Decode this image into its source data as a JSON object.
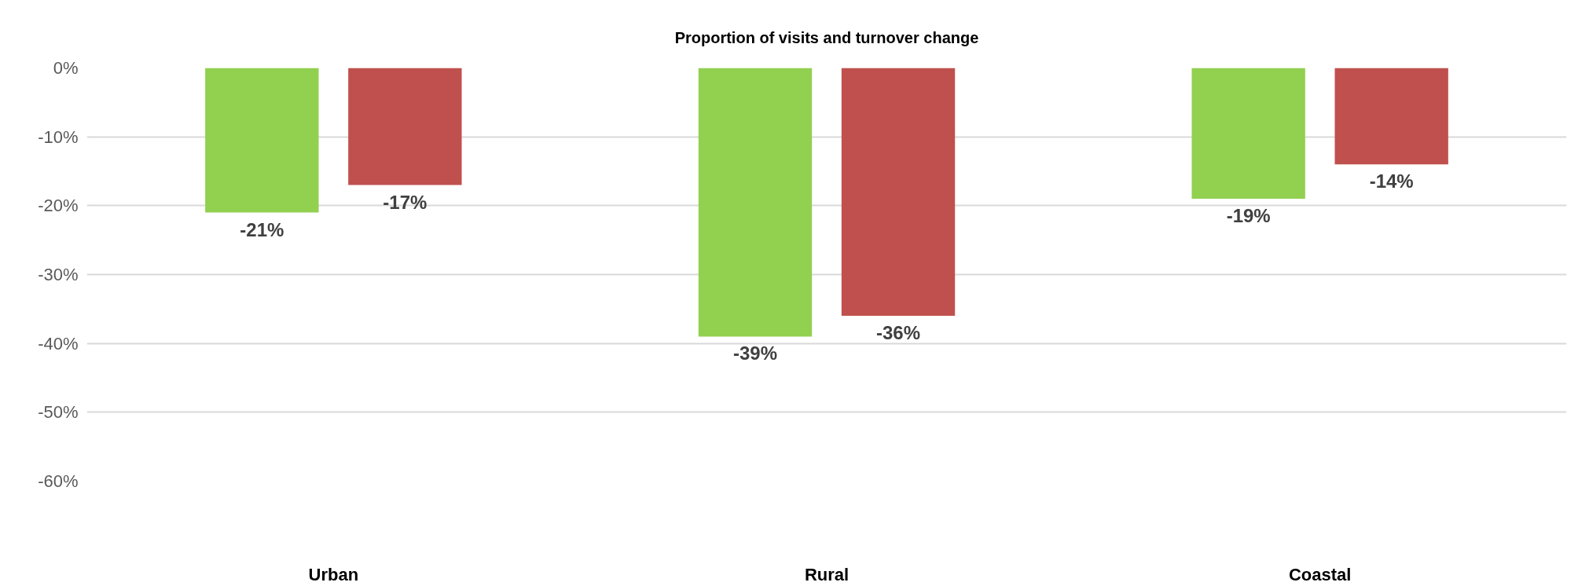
{
  "chart_data": {
    "type": "bar",
    "title": "Proportion of visits and turnover change",
    "categories": [
      "Urban",
      "Rural",
      "Coastal"
    ],
    "series": [
      {
        "color": "#92d050",
        "values": [
          -21,
          -39,
          -19
        ],
        "value_labels": [
          "-21%",
          "-39%",
          "-19%"
        ]
      },
      {
        "color": "#c0504d",
        "values": [
          -17,
          -36,
          -14
        ],
        "value_labels": [
          "-17%",
          "-36%",
          "-14%"
        ]
      }
    ],
    "ylim": [
      -60,
      0
    ],
    "yticks": [
      {
        "value": 0,
        "label": "0%"
      },
      {
        "value": -10,
        "label": "-10%"
      },
      {
        "value": -20,
        "label": "-20%"
      },
      {
        "value": -30,
        "label": "-30%"
      },
      {
        "value": -40,
        "label": "-40%"
      },
      {
        "value": -50,
        "label": "-50%"
      },
      {
        "value": -60,
        "label": "-60%"
      }
    ],
    "grid": "y"
  }
}
